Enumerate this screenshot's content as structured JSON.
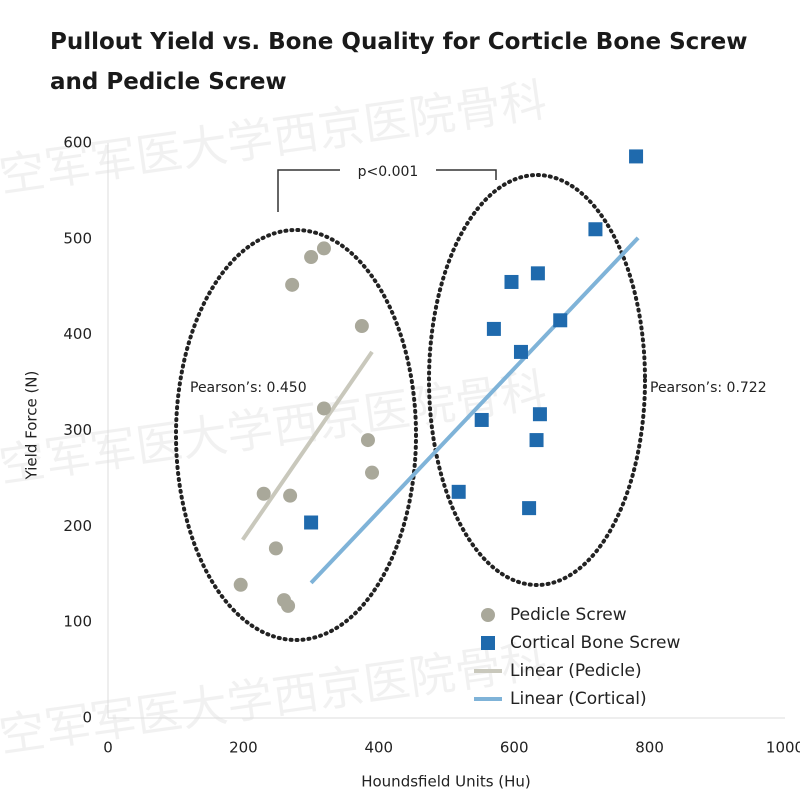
{
  "chart_data": {
    "type": "scatter",
    "title": "Pullout Yield vs. Bone Quality for Corticle Bone Screw and Pedicle Screw",
    "x_label": "Houndsfield Units (Hu)",
    "y_label": "Yield Force (N)",
    "watermark": "空军军医大学西京医院骨科",
    "xlim": [
      0,
      1000
    ],
    "xticks": [
      0,
      200,
      400,
      600,
      800,
      1000
    ],
    "ylim": [
      0,
      600
    ],
    "yticks": [
      0,
      100,
      200,
      300,
      400,
      500,
      600
    ],
    "grid": false,
    "annotations": [
      "p<0.001",
      "Pearson’s: 0.450",
      "Pearson’s: 0.722"
    ],
    "series": [
      {
        "name": "Pedicle Screw",
        "color": "#a9a89a",
        "marker": "circle",
        "x": [
          196,
          230,
          248,
          260,
          266,
          269,
          272,
          300,
          319,
          319,
          375,
          384,
          390
        ],
        "values": [
          139,
          234,
          177,
          123,
          117,
          232,
          452,
          481,
          490,
          323,
          409,
          290,
          256
        ]
      },
      {
        "name": "Cortical Bone Screw",
        "color": "#1f6aad",
        "marker": "square",
        "x": [
          300,
          518,
          552,
          570,
          596,
          610,
          622,
          635,
          633,
          638,
          668,
          720,
          780
        ],
        "values": [
          204,
          236,
          311,
          406,
          455,
          382,
          219,
          464,
          290,
          317,
          415,
          510,
          586
        ]
      }
    ],
    "trendlines": [
      {
        "name": "Linear (Pedicle)",
        "color": "#c9c8bc",
        "x": [
          199,
          390
        ],
        "values": [
          186,
          382
        ]
      },
      {
        "name": "Linear (Cortical)",
        "color": "#7fb3d8",
        "x": [
          300,
          783
        ],
        "values": [
          141,
          501
        ]
      }
    ]
  }
}
